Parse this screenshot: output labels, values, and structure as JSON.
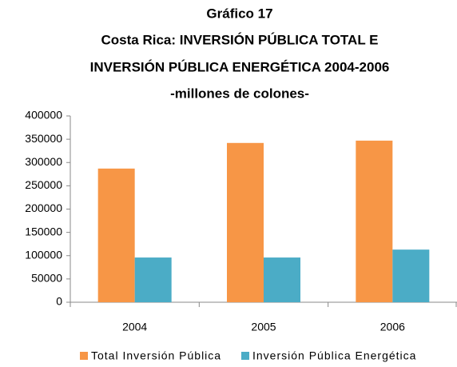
{
  "chart_data": {
    "type": "bar",
    "title": "Gráfico 17",
    "subtitle": [
      "Costa Rica: INVERSIÓN PÚBLICA TOTAL E",
      "INVERSIÓN PÚBLICA ENERGÉTICA 2004-2006",
      "-millones de colones-"
    ],
    "categories": [
      "2004",
      "2005",
      "2006"
    ],
    "series": [
      {
        "name": "Total  Inversión Pública",
        "color": "#f79646",
        "values": [
          287000,
          342000,
          347000
        ]
      },
      {
        "name": "Inversión Pública Energética",
        "color": "#4bacc6",
        "values": [
          96000,
          96000,
          113000
        ]
      }
    ],
    "ylim": [
      0,
      400000
    ],
    "yticks": [
      0,
      50000,
      100000,
      150000,
      200000,
      250000,
      300000,
      350000,
      400000
    ],
    "grid": false,
    "legend": "bottom"
  }
}
